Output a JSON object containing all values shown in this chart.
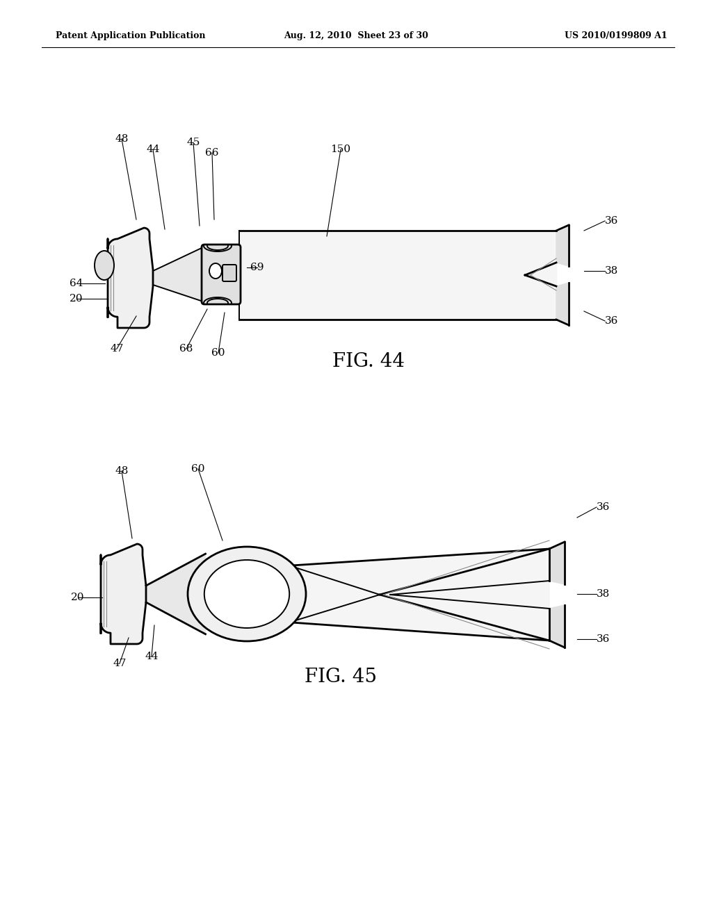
{
  "bg_color": "#ffffff",
  "line_color": "#000000",
  "header_left": "Patent Application Publication",
  "header_mid": "Aug. 12, 2010  Sheet 23 of 30",
  "header_right": "US 2010/0199809 A1",
  "fig44_label": "FIG. 44",
  "fig45_label": "FIG. 45"
}
